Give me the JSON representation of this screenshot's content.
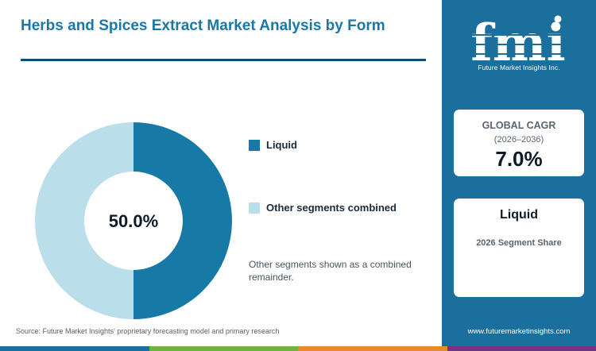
{
  "title": "Herbs and Spices Extract Market Analysis by Form",
  "chart_data": {
    "type": "pie",
    "style": "donut",
    "categories": [
      "Liquid",
      "Other segments combined"
    ],
    "values": [
      50.0,
      50.0
    ],
    "center_label": "50.0%",
    "colors": [
      "#1779a6",
      "#badfeb"
    ],
    "legend_placement": "right"
  },
  "legend": {
    "items": [
      {
        "label": "Liquid",
        "color": "#1779a6"
      },
      {
        "label": "Other segments combined",
        "color": "#badfeb"
      }
    ]
  },
  "note": "Other segments shown as a combined remainder.",
  "source": "Source: Future Market Insights' proprietary forecasting model and primary research",
  "sidebar": {
    "logo_text": "fmi",
    "logo_caption": "Future Market Insights Inc.",
    "cagr": {
      "title": "GLOBAL CAGR",
      "period": "(2026–2036)",
      "value": "7.0%"
    },
    "segment": {
      "title": "Liquid",
      "subtitle": "2026 Segment Share"
    },
    "website": "www.futuremarketinsights.com"
  },
  "colors": {
    "accent": "#1a6f9d",
    "title": "#1a78a8",
    "rule": "#114f75",
    "bottom_bar": [
      "#1a6f9d",
      "#6fb441",
      "#e88a2c",
      "#7a2e84"
    ]
  }
}
